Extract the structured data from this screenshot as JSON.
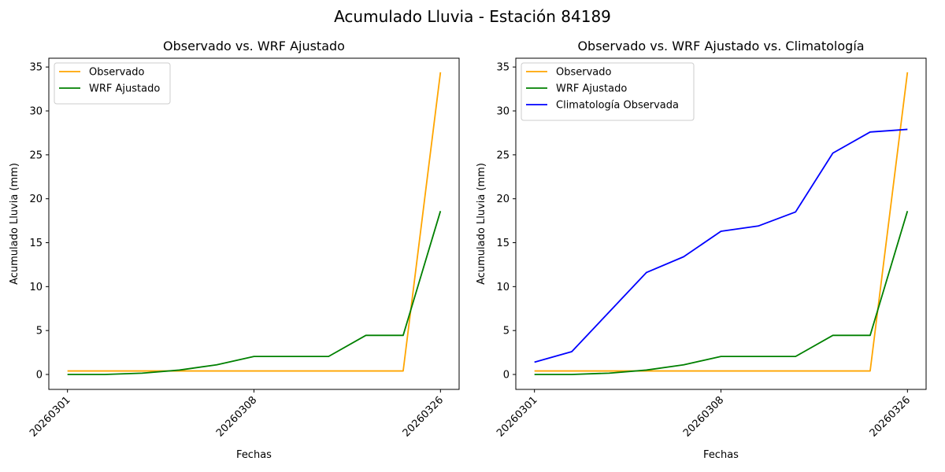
{
  "figure": {
    "suptitle": "Acumulado Lluvia - Estación 84189"
  },
  "colors": {
    "observado": "#ffa500",
    "wrf": "#008000",
    "clima": "#0000ff"
  },
  "chart_data": [
    {
      "type": "line",
      "title": "Observado vs. WRF Ajustado",
      "xlabel": "Fechas",
      "ylabel": "Acumulado Lluvia (mm)",
      "x_index": [
        0,
        1,
        2,
        3,
        4,
        5,
        6,
        7,
        8,
        9,
        10
      ],
      "xticks": [
        {
          "index": 0,
          "label": "20260301"
        },
        {
          "index": 5,
          "label": "20260308"
        },
        {
          "index": 10,
          "label": "20260326"
        }
      ],
      "ylim": [
        -1.7,
        36
      ],
      "yticks": [
        0,
        5,
        10,
        15,
        20,
        25,
        30,
        35
      ],
      "legend": "top-left",
      "series": [
        {
          "name": "Observado",
          "color_key": "observado",
          "values": [
            0.4,
            0.4,
            0.4,
            0.4,
            0.4,
            0.4,
            0.4,
            0.4,
            0.4,
            0.4,
            34.4
          ]
        },
        {
          "name": "WRF Ajustado",
          "color_key": "wrf",
          "values": [
            0.0,
            0.0,
            0.15,
            0.5,
            1.1,
            2.05,
            2.05,
            2.05,
            4.45,
            4.45,
            18.6
          ]
        }
      ]
    },
    {
      "type": "line",
      "title": "Observado vs. WRF Ajustado vs. Climatología",
      "xlabel": "Fechas",
      "ylabel": "Acumulado Lluvia (mm)",
      "x_index": [
        0,
        1,
        2,
        3,
        4,
        5,
        6,
        7,
        8,
        9,
        10
      ],
      "xticks": [
        {
          "index": 0,
          "label": "20260301"
        },
        {
          "index": 5,
          "label": "20260308"
        },
        {
          "index": 10,
          "label": "20260326"
        }
      ],
      "ylim": [
        -1.7,
        36
      ],
      "yticks": [
        0,
        5,
        10,
        15,
        20,
        25,
        30,
        35
      ],
      "legend": "top-left",
      "series": [
        {
          "name": "Observado",
          "color_key": "observado",
          "values": [
            0.4,
            0.4,
            0.4,
            0.4,
            0.4,
            0.4,
            0.4,
            0.4,
            0.4,
            0.4,
            34.4
          ]
        },
        {
          "name": "WRF Ajustado",
          "color_key": "wrf",
          "values": [
            0.0,
            0.0,
            0.15,
            0.5,
            1.1,
            2.05,
            2.05,
            2.05,
            4.45,
            4.45,
            18.6
          ]
        },
        {
          "name": "Climatología Observada",
          "color_key": "clima",
          "values": [
            1.4,
            2.6,
            7.1,
            11.6,
            13.4,
            16.3,
            16.9,
            18.5,
            25.2,
            27.6,
            27.9
          ]
        }
      ]
    }
  ]
}
